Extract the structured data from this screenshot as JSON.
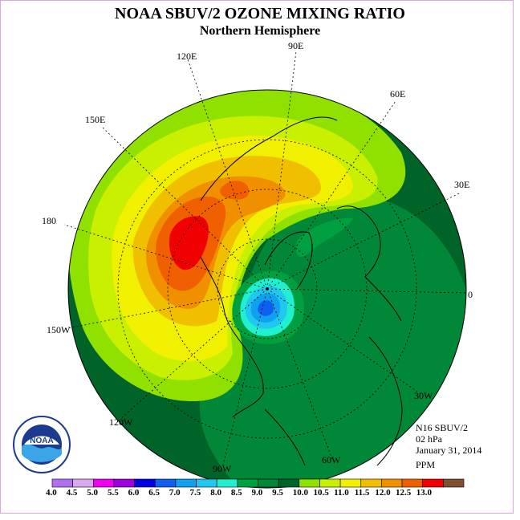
{
  "header": {
    "title": "NOAA SBUV/2 OZONE MIXING RATIO",
    "subtitle": "Northern Hemisphere"
  },
  "longitude_labels": [
    "90E",
    "120E",
    "60E",
    "150E",
    "30E",
    "180",
    "0",
    "150W",
    "30W",
    "120W",
    "60W",
    "90W"
  ],
  "info": {
    "instrument": "N16 SBUV/2",
    "level": "02 hPa",
    "date": "January 31, 2014",
    "units": "PPM"
  },
  "logo": {
    "text": "NOAA"
  },
  "colorbar": {
    "labels": [
      "4.0",
      "4.5",
      "5.0",
      "5.5",
      "6.0",
      "6.5",
      "7.0",
      "7.5",
      "8.0",
      "8.5",
      "9.0",
      "9.5",
      "10.0",
      "10.5",
      "11.0",
      "11.5",
      "12.0",
      "12.5",
      "13.0"
    ],
    "colors": [
      "#b070f0",
      "#d8a8f0",
      "#f000f0",
      "#a000e0",
      "#0000e0",
      "#1060f0",
      "#10a0f0",
      "#20c8f0",
      "#20f0d0",
      "#00a040",
      "#008838",
      "#006428",
      "#90e000",
      "#c8f000",
      "#f0f000",
      "#f0c000",
      "#f09000",
      "#f06000",
      "#f00000",
      "#805030"
    ]
  },
  "map_colors": {
    "ocean_dark": "#006428",
    "mid_green": "#008838",
    "light_green": "#00a040",
    "lime": "#90e000",
    "yellow_green": "#c8f000",
    "yellow": "#f0f000",
    "light_orange": "#f0c000",
    "orange": "#f09000",
    "dark_orange": "#f06000",
    "red": "#f00000",
    "cyan": "#20f0d0",
    "sky": "#20c8f0",
    "blue": "#10a0f0",
    "deep_blue": "#1060f0"
  }
}
